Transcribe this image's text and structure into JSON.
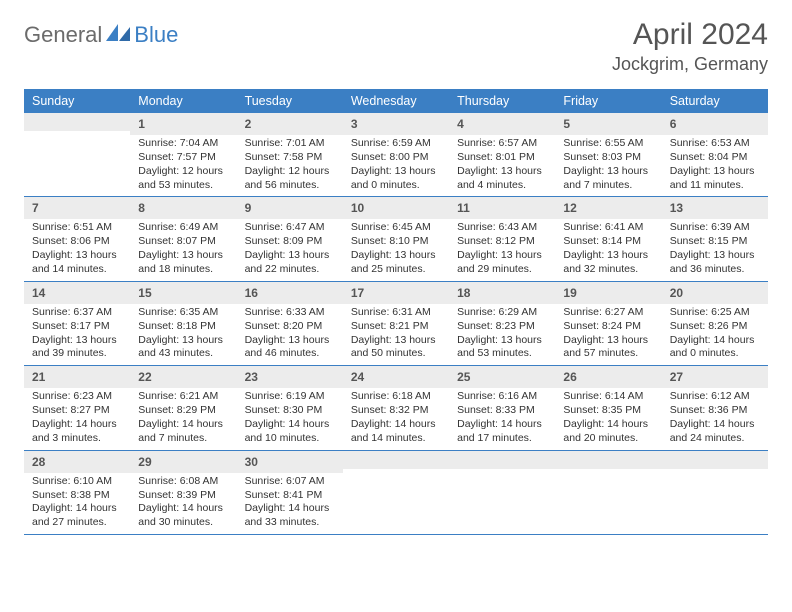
{
  "brand": {
    "text1": "General",
    "text2": "Blue",
    "mark_color": "#3b7fc4"
  },
  "title": {
    "month": "April 2024",
    "location": "Jockgrim, Germany"
  },
  "style": {
    "header_bg": "#3b7fc4",
    "header_fg": "#ffffff",
    "daynum_bg": "#ececec",
    "rule_color": "#3b7fc4",
    "body_fontsize": 10.5,
    "header_fontsize": 12.5,
    "month_fontsize": 30,
    "location_fontsize": 18
  },
  "weekdays": [
    "Sunday",
    "Monday",
    "Tuesday",
    "Wednesday",
    "Thursday",
    "Friday",
    "Saturday"
  ],
  "weeks": [
    [
      {
        "blank": true
      },
      {
        "n": "1",
        "sunrise": "Sunrise: 7:04 AM",
        "sunset": "Sunset: 7:57 PM",
        "d1": "Daylight: 12 hours",
        "d2": "and 53 minutes."
      },
      {
        "n": "2",
        "sunrise": "Sunrise: 7:01 AM",
        "sunset": "Sunset: 7:58 PM",
        "d1": "Daylight: 12 hours",
        "d2": "and 56 minutes."
      },
      {
        "n": "3",
        "sunrise": "Sunrise: 6:59 AM",
        "sunset": "Sunset: 8:00 PM",
        "d1": "Daylight: 13 hours",
        "d2": "and 0 minutes."
      },
      {
        "n": "4",
        "sunrise": "Sunrise: 6:57 AM",
        "sunset": "Sunset: 8:01 PM",
        "d1": "Daylight: 13 hours",
        "d2": "and 4 minutes."
      },
      {
        "n": "5",
        "sunrise": "Sunrise: 6:55 AM",
        "sunset": "Sunset: 8:03 PM",
        "d1": "Daylight: 13 hours",
        "d2": "and 7 minutes."
      },
      {
        "n": "6",
        "sunrise": "Sunrise: 6:53 AM",
        "sunset": "Sunset: 8:04 PM",
        "d1": "Daylight: 13 hours",
        "d2": "and 11 minutes."
      }
    ],
    [
      {
        "n": "7",
        "sunrise": "Sunrise: 6:51 AM",
        "sunset": "Sunset: 8:06 PM",
        "d1": "Daylight: 13 hours",
        "d2": "and 14 minutes."
      },
      {
        "n": "8",
        "sunrise": "Sunrise: 6:49 AM",
        "sunset": "Sunset: 8:07 PM",
        "d1": "Daylight: 13 hours",
        "d2": "and 18 minutes."
      },
      {
        "n": "9",
        "sunrise": "Sunrise: 6:47 AM",
        "sunset": "Sunset: 8:09 PM",
        "d1": "Daylight: 13 hours",
        "d2": "and 22 minutes."
      },
      {
        "n": "10",
        "sunrise": "Sunrise: 6:45 AM",
        "sunset": "Sunset: 8:10 PM",
        "d1": "Daylight: 13 hours",
        "d2": "and 25 minutes."
      },
      {
        "n": "11",
        "sunrise": "Sunrise: 6:43 AM",
        "sunset": "Sunset: 8:12 PM",
        "d1": "Daylight: 13 hours",
        "d2": "and 29 minutes."
      },
      {
        "n": "12",
        "sunrise": "Sunrise: 6:41 AM",
        "sunset": "Sunset: 8:14 PM",
        "d1": "Daylight: 13 hours",
        "d2": "and 32 minutes."
      },
      {
        "n": "13",
        "sunrise": "Sunrise: 6:39 AM",
        "sunset": "Sunset: 8:15 PM",
        "d1": "Daylight: 13 hours",
        "d2": "and 36 minutes."
      }
    ],
    [
      {
        "n": "14",
        "sunrise": "Sunrise: 6:37 AM",
        "sunset": "Sunset: 8:17 PM",
        "d1": "Daylight: 13 hours",
        "d2": "and 39 minutes."
      },
      {
        "n": "15",
        "sunrise": "Sunrise: 6:35 AM",
        "sunset": "Sunset: 8:18 PM",
        "d1": "Daylight: 13 hours",
        "d2": "and 43 minutes."
      },
      {
        "n": "16",
        "sunrise": "Sunrise: 6:33 AM",
        "sunset": "Sunset: 8:20 PM",
        "d1": "Daylight: 13 hours",
        "d2": "and 46 minutes."
      },
      {
        "n": "17",
        "sunrise": "Sunrise: 6:31 AM",
        "sunset": "Sunset: 8:21 PM",
        "d1": "Daylight: 13 hours",
        "d2": "and 50 minutes."
      },
      {
        "n": "18",
        "sunrise": "Sunrise: 6:29 AM",
        "sunset": "Sunset: 8:23 PM",
        "d1": "Daylight: 13 hours",
        "d2": "and 53 minutes."
      },
      {
        "n": "19",
        "sunrise": "Sunrise: 6:27 AM",
        "sunset": "Sunset: 8:24 PM",
        "d1": "Daylight: 13 hours",
        "d2": "and 57 minutes."
      },
      {
        "n": "20",
        "sunrise": "Sunrise: 6:25 AM",
        "sunset": "Sunset: 8:26 PM",
        "d1": "Daylight: 14 hours",
        "d2": "and 0 minutes."
      }
    ],
    [
      {
        "n": "21",
        "sunrise": "Sunrise: 6:23 AM",
        "sunset": "Sunset: 8:27 PM",
        "d1": "Daylight: 14 hours",
        "d2": "and 3 minutes."
      },
      {
        "n": "22",
        "sunrise": "Sunrise: 6:21 AM",
        "sunset": "Sunset: 8:29 PM",
        "d1": "Daylight: 14 hours",
        "d2": "and 7 minutes."
      },
      {
        "n": "23",
        "sunrise": "Sunrise: 6:19 AM",
        "sunset": "Sunset: 8:30 PM",
        "d1": "Daylight: 14 hours",
        "d2": "and 10 minutes."
      },
      {
        "n": "24",
        "sunrise": "Sunrise: 6:18 AM",
        "sunset": "Sunset: 8:32 PM",
        "d1": "Daylight: 14 hours",
        "d2": "and 14 minutes."
      },
      {
        "n": "25",
        "sunrise": "Sunrise: 6:16 AM",
        "sunset": "Sunset: 8:33 PM",
        "d1": "Daylight: 14 hours",
        "d2": "and 17 minutes."
      },
      {
        "n": "26",
        "sunrise": "Sunrise: 6:14 AM",
        "sunset": "Sunset: 8:35 PM",
        "d1": "Daylight: 14 hours",
        "d2": "and 20 minutes."
      },
      {
        "n": "27",
        "sunrise": "Sunrise: 6:12 AM",
        "sunset": "Sunset: 8:36 PM",
        "d1": "Daylight: 14 hours",
        "d2": "and 24 minutes."
      }
    ],
    [
      {
        "n": "28",
        "sunrise": "Sunrise: 6:10 AM",
        "sunset": "Sunset: 8:38 PM",
        "d1": "Daylight: 14 hours",
        "d2": "and 27 minutes."
      },
      {
        "n": "29",
        "sunrise": "Sunrise: 6:08 AM",
        "sunset": "Sunset: 8:39 PM",
        "d1": "Daylight: 14 hours",
        "d2": "and 30 minutes."
      },
      {
        "n": "30",
        "sunrise": "Sunrise: 6:07 AM",
        "sunset": "Sunset: 8:41 PM",
        "d1": "Daylight: 14 hours",
        "d2": "and 33 minutes."
      },
      {
        "blank": true
      },
      {
        "blank": true
      },
      {
        "blank": true
      },
      {
        "blank": true
      }
    ]
  ]
}
